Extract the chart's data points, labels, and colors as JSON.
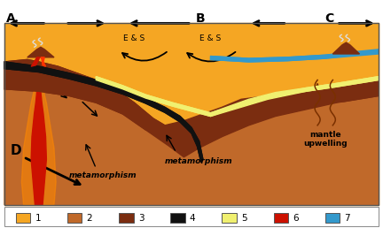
{
  "bg_color": "#ffffff",
  "colors": {
    "mantle": "#F5A623",
    "crust_med": "#C0692A",
    "crust_dark": "#7B2D10",
    "oceanic_plate": "#111111",
    "yellow_layer": "#F0F070",
    "red_magma": "#CC1100",
    "red_bright": "#FF3300",
    "orange_glow": "#FF8800",
    "ocean_blue": "#3399CC",
    "white": "#ffffff"
  },
  "legend_items": [
    {
      "label": "1",
      "color": "#F5A623"
    },
    {
      "label": "2",
      "color": "#C0692A"
    },
    {
      "label": "3",
      "color": "#7B2D10"
    },
    {
      "label": "4",
      "color": "#111111"
    },
    {
      "label": "5",
      "color": "#F0F070"
    },
    {
      "label": "6",
      "color": "#CC1100"
    },
    {
      "label": "7",
      "color": "#3399CC"
    }
  ],
  "figsize": [
    4.32,
    2.58
  ],
  "dpi": 100
}
